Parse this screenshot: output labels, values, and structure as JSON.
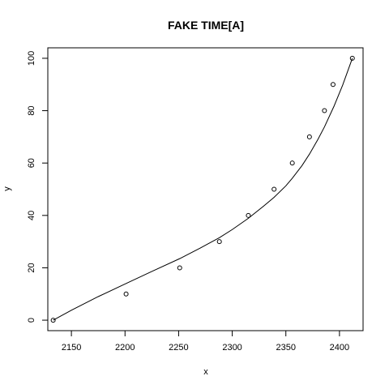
{
  "chart_data": {
    "type": "scatter",
    "title": "FAKE TIME[A]",
    "xlabel": "x",
    "ylabel": "y",
    "xlim": [
      2128,
      2422
    ],
    "ylim": [
      -4,
      104
    ],
    "x_ticks": [
      2150,
      2200,
      2250,
      2300,
      2350,
      2400
    ],
    "x_tick_labels": [
      "2150",
      "2200",
      "2250",
      "2300",
      "2350",
      "2400"
    ],
    "y_ticks": [
      0,
      20,
      40,
      60,
      80,
      100
    ],
    "y_tick_labels": [
      "0",
      "20",
      "40",
      "60",
      "80",
      "100"
    ],
    "grid": false,
    "legend": "none",
    "series": [
      {
        "kind": "points",
        "marker": "open-circle",
        "x": [
          2133,
          2201,
          2251,
          2288,
          2315,
          2339,
          2356,
          2372,
          2386,
          2394,
          2412
        ],
        "y": [
          0,
          10,
          20,
          30,
          40,
          50,
          60,
          70,
          80,
          90,
          100
        ]
      },
      {
        "kind": "fitted-line",
        "x": [
          2133,
          2150,
          2175,
          2201,
          2225,
          2251,
          2270,
          2288,
          2300,
          2315,
          2330,
          2339,
          2350,
          2356,
          2365,
          2372,
          2380,
          2386,
          2395,
          2403,
          2412
        ],
        "y": [
          0,
          3.8,
          9.0,
          14.0,
          18.6,
          23.5,
          27.5,
          31.5,
          34.6,
          38.9,
          43.8,
          46.9,
          51.3,
          54.2,
          59.0,
          63.4,
          69.1,
          73.8,
          81.8,
          89.8,
          100
        ]
      }
    ],
    "colors": {
      "foreground": "#000000",
      "background": "#ffffff"
    }
  }
}
